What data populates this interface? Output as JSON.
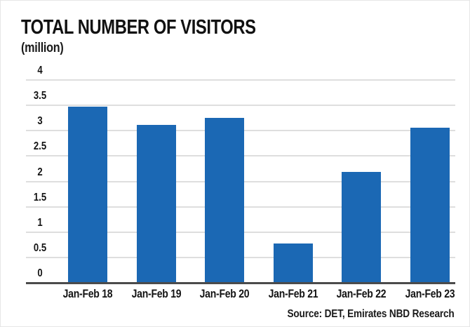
{
  "title": "TOTAL NUMBER OF VISITORS",
  "subtitle": "(million)",
  "source": "Source: DET, Emirates NBD Research",
  "colors": {
    "bar": "#1b68b4",
    "grid": "#dedede",
    "axis": "#4b4b4b",
    "text": "#121212"
  },
  "chart_data": {
    "type": "bar",
    "categories": [
      "Jan-Feb 18",
      "Jan-Feb 19",
      "Jan-Feb 20",
      "Jan-Feb 21",
      "Jan-Feb 22",
      "Jan-Feb 23"
    ],
    "values": [
      3.48,
      3.12,
      3.25,
      0.78,
      2.18,
      3.06
    ],
    "title": "TOTAL NUMBER OF VISITORS",
    "xlabel": "",
    "ylabel": "(million)",
    "ylim": [
      0,
      4
    ],
    "yticks": [
      4,
      3.5,
      3,
      2.5,
      2,
      1.5,
      1,
      0.5,
      0
    ],
    "grid": true,
    "legend": false,
    "gridlines_horizontal": true,
    "tick_label_position": "above-gridline-left"
  }
}
